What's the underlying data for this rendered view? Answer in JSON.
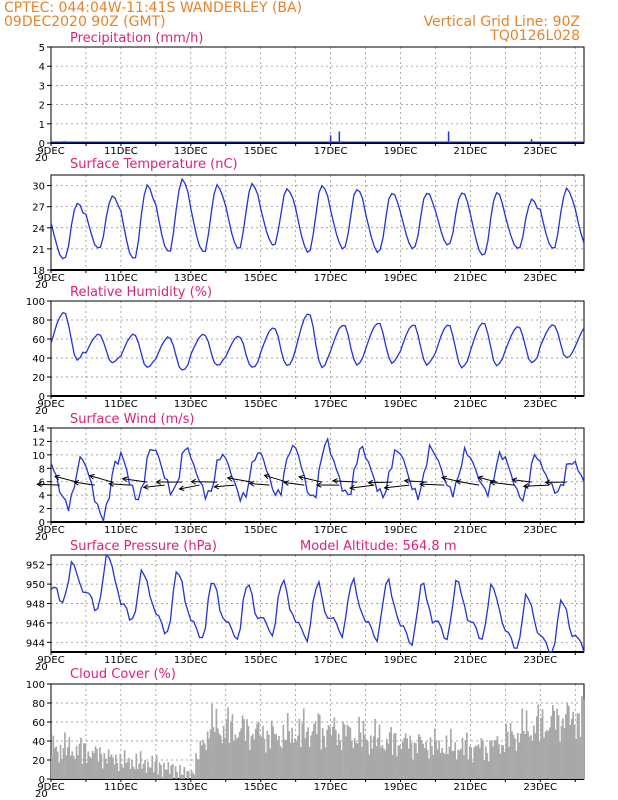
{
  "header": {
    "line1_left": "CPTEC:   044:04W-11:41S   WANDERLEY (BA)",
    "line2_left": "09DEC2020 90Z (GMT)",
    "line1_right": "Vertical Grid Line: 90Z",
    "line2_right": "TQ0126L028"
  },
  "colors": {
    "axis": "#000000",
    "series": "#2233dd",
    "title": "#e0207a",
    "header": "#e8822a",
    "cloud": "#a8a8a8",
    "wind_arrow": "#000000"
  },
  "x_axis": {
    "type": "date",
    "start": "2020-12-09 00Z",
    "end": "2020-12-24 06Z",
    "tick_labels": [
      "9DEC",
      "11DEC",
      "13DEC",
      "15DEC",
      "17DEC",
      "19DEC",
      "21DEC",
      "23DEC"
    ],
    "cut_label": "20"
  },
  "chart_data": [
    {
      "id": "precip",
      "type": "bar",
      "title": "Precipitation (mm/h)",
      "ylim": [
        0,
        5
      ],
      "yticks": [
        0,
        1,
        2,
        3,
        4,
        5
      ],
      "grid": true,
      "spikes": [
        {
          "date": "2020-12-09 09Z",
          "value": 0.1
        },
        {
          "date": "2020-12-17 00Z",
          "value": 0.4
        },
        {
          "date": "2020-12-17 06Z",
          "value": 0.6
        },
        {
          "date": "2020-12-20 09Z",
          "value": 0.6
        },
        {
          "date": "2020-12-22 18Z",
          "value": 0.2
        }
      ]
    },
    {
      "id": "temp",
      "type": "line",
      "title": "Surface Temperature (nC)",
      "ylim": [
        18,
        31.5
      ],
      "yticks": [
        18,
        21,
        24,
        27,
        30
      ],
      "grid": true,
      "daily": [
        {
          "min": 19.5,
          "max": 27.5
        },
        {
          "min": 21.0,
          "max": 28.5
        },
        {
          "min": 19.5,
          "max": 30.0
        },
        {
          "min": 20.5,
          "max": 30.8
        },
        {
          "min": 20.5,
          "max": 30.0
        },
        {
          "min": 21.0,
          "max": 30.2
        },
        {
          "min": 21.5,
          "max": 29.5
        },
        {
          "min": 20.5,
          "max": 30.0
        },
        {
          "min": 21.0,
          "max": 29.5
        },
        {
          "min": 20.5,
          "max": 29.0
        },
        {
          "min": 21.0,
          "max": 29.0
        },
        {
          "min": 21.5,
          "max": 29.0
        },
        {
          "min": 20.0,
          "max": 29.0
        },
        {
          "min": 21.0,
          "max": 28.0
        },
        {
          "min": 21.0,
          "max": 29.5
        }
      ]
    },
    {
      "id": "rh",
      "type": "line",
      "title": "Relative Humidity (%)",
      "ylim": [
        0,
        100
      ],
      "yticks": [
        0,
        20,
        40,
        60,
        80,
        100
      ],
      "grid": true,
      "daily": [
        {
          "min": 38,
          "max": 88
        },
        {
          "min": 35,
          "max": 65
        },
        {
          "min": 30,
          "max": 65
        },
        {
          "min": 27,
          "max": 62
        },
        {
          "min": 32,
          "max": 65
        },
        {
          "min": 30,
          "max": 63
        },
        {
          "min": 32,
          "max": 72
        },
        {
          "min": 30,
          "max": 87
        },
        {
          "min": 33,
          "max": 75
        },
        {
          "min": 35,
          "max": 77
        },
        {
          "min": 33,
          "max": 75
        },
        {
          "min": 30,
          "max": 75
        },
        {
          "min": 32,
          "max": 77
        },
        {
          "min": 35,
          "max": 73
        },
        {
          "min": 40,
          "max": 75
        }
      ]
    },
    {
      "id": "wind",
      "type": "line",
      "title": "Surface Wind (m/s)",
      "ylim": [
        0,
        14
      ],
      "yticks": [
        0,
        2,
        4,
        6,
        8,
        10,
        12,
        14
      ],
      "grid": true,
      "daily": [
        {
          "min": 2.5,
          "max": 9.5
        },
        {
          "min": 0.8,
          "max": 9.0
        },
        {
          "min": 3.5,
          "max": 11.0
        },
        {
          "min": 4.5,
          "max": 11.2
        },
        {
          "min": 4.0,
          "max": 10.0
        },
        {
          "min": 3.5,
          "max": 10.0
        },
        {
          "min": 4.0,
          "max": 11.0
        },
        {
          "min": 3.5,
          "max": 12.0
        },
        {
          "min": 4.0,
          "max": 11.0
        },
        {
          "min": 4.0,
          "max": 10.5
        },
        {
          "min": 4.0,
          "max": 11.0
        },
        {
          "min": 4.5,
          "max": 10.5
        },
        {
          "min": 4.5,
          "max": 10.0
        },
        {
          "min": 3.5,
          "max": 10.0
        },
        {
          "min": 4.5,
          "max": 9.0
        }
      ]
    },
    {
      "id": "pres",
      "type": "line",
      "title": "Surface Pressure (hPa)",
      "annotation": "Model Altitude: 564.8  m",
      "ylim": [
        943,
        953
      ],
      "yticks": [
        944,
        946,
        948,
        950,
        952
      ],
      "grid": true,
      "daily": [
        {
          "lo": 948.5,
          "hi": 951.3
        },
        {
          "lo": 947.5,
          "hi": 952.2
        },
        {
          "lo": 946.5,
          "hi": 950.5
        },
        {
          "lo": 945.0,
          "hi": 950.5
        },
        {
          "lo": 944.5,
          "hi": 949.5
        },
        {
          "lo": 944.5,
          "hi": 949.2
        },
        {
          "lo": 945.0,
          "hi": 949.5
        },
        {
          "lo": 944.5,
          "hi": 949.2
        },
        {
          "lo": 945.0,
          "hi": 949.5
        },
        {
          "lo": 944.5,
          "hi": 949.5
        },
        {
          "lo": 944.0,
          "hi": 949.2
        },
        {
          "lo": 944.5,
          "hi": 949.5
        },
        {
          "lo": 944.5,
          "hi": 949.0
        },
        {
          "lo": 943.5,
          "hi": 948.0
        },
        {
          "lo": 943.0,
          "hi": 947.5
        }
      ]
    },
    {
      "id": "cloud",
      "type": "area",
      "title": "Cloud Cover (%)",
      "ylim": [
        0,
        100
      ],
      "yticks": [
        0,
        20,
        40,
        60,
        80,
        100
      ],
      "grid": true,
      "levels": [
        {
          "date": "2020-12-09 00Z",
          "value": 45
        },
        {
          "date": "2020-12-10 00Z",
          "value": 40
        },
        {
          "date": "2020-12-11 00Z",
          "value": 25
        },
        {
          "date": "2020-12-12 00Z",
          "value": 20
        },
        {
          "date": "2020-12-13 00Z",
          "value": 5
        },
        {
          "date": "2020-12-13 12Z",
          "value": 75
        },
        {
          "date": "2020-12-14 12Z",
          "value": 70
        },
        {
          "date": "2020-12-15 12Z",
          "value": 60
        },
        {
          "date": "2020-12-16 12Z",
          "value": 72
        },
        {
          "date": "2020-12-17 12Z",
          "value": 65
        },
        {
          "date": "2020-12-18 12Z",
          "value": 55
        },
        {
          "date": "2020-12-19 12Z",
          "value": 50
        },
        {
          "date": "2020-12-20 12Z",
          "value": 45
        },
        {
          "date": "2020-12-21 12Z",
          "value": 45
        },
        {
          "date": "2020-12-22 12Z",
          "value": 70
        },
        {
          "date": "2020-12-23 12Z",
          "value": 85
        },
        {
          "date": "2020-12-24 06Z",
          "value": 90
        }
      ]
    }
  ]
}
